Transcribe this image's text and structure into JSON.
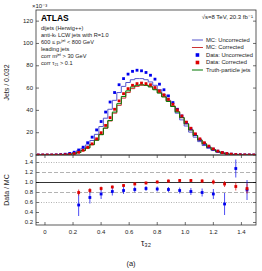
{
  "chart_data": [
    {
      "type": "histogram",
      "ylabel": "Jets / 0.032",
      "annotations": [
        "×10⁻³",
        "ATLAS",
        "√s=8 TeV,  20.3 fb⁻¹"
      ],
      "subtitle": [
        "dijets (Herwig++)",
        "anti-kₜ LCW jets with R=1.0",
        "600 ≤ pₜʲᵉᵗ < 800 GeV",
        "leading jets",
        "corr mʲᵉᵗ > 30 GeV",
        "corr τ₂₁ > 0.1"
      ],
      "xlim": [
        -0.064,
        1.504
      ],
      "ylim": [
        0,
        130
      ],
      "yticks": [
        0,
        20,
        40,
        60,
        80,
        100,
        120
      ],
      "tick_labels": "y",
      "legend": "upper right",
      "bins": [
        -0.064,
        -0.032,
        0.0,
        0.032,
        0.064,
        0.096,
        0.128,
        0.16,
        0.192,
        0.224,
        0.256,
        0.288,
        0.32,
        0.352,
        0.384,
        0.416,
        0.448,
        0.48,
        0.512,
        0.544,
        0.576,
        0.608,
        0.64,
        0.672,
        0.704,
        0.736,
        0.768,
        0.8,
        0.832,
        0.864,
        0.896,
        0.928,
        0.96,
        0.992,
        1.024,
        1.056,
        1.088,
        1.12,
        1.152,
        1.184,
        1.216,
        1.248,
        1.28,
        1.312,
        1.344,
        1.376,
        1.408,
        1.44,
        1.472,
        1.504
      ],
      "series": [
        {
          "name": "MC: Uncorrected",
          "type": "step",
          "color": "#5555cc",
          "values": [
            0.0,
            0.0,
            0.0,
            0.0,
            0.1,
            0.3,
            0.6,
            1.2,
            2.2,
            3.8,
            6.0,
            9.0,
            13.0,
            18.5,
            25.5,
            33.0,
            41.0,
            49.0,
            56.0,
            61.5,
            65.0,
            67.5,
            68.5,
            68.5,
            67.5,
            65.5,
            62.5,
            58.5,
            54.0,
            49.0,
            43.5,
            37.5,
            31.5,
            26.0,
            20.5,
            16.0,
            12.0,
            8.5,
            6.0,
            4.0,
            2.5,
            1.5,
            0.9,
            0.4,
            0.2,
            0.1,
            0.05,
            0.02,
            0.0
          ]
        },
        {
          "name": "MC: Corrected",
          "type": "step",
          "color": "#cc3333",
          "values": [
            0.0,
            0.0,
            0.0,
            0.0,
            0.0,
            0.1,
            0.3,
            0.6,
            1.2,
            2.3,
            4.0,
            6.5,
            9.5,
            13.5,
            18.5,
            24.0,
            30.5,
            37.5,
            44.5,
            51.0,
            56.0,
            59.5,
            61.5,
            62.5,
            62.5,
            61.5,
            59.0,
            56.0,
            52.5,
            48.5,
            44.0,
            39.0,
            33.5,
            28.0,
            22.5,
            17.5,
            13.5,
            10.0,
            7.0,
            4.8,
            3.2,
            2.0,
            1.2,
            0.7,
            0.35,
            0.15,
            0.07,
            0.02,
            0.0
          ]
        },
        {
          "name": "Data: Uncorrected",
          "type": "scatter",
          "marker": "square",
          "color": "#0000ee",
          "values": [
            0.0,
            0.0,
            0.0,
            0.0,
            0.12,
            0.35,
            0.7,
            1.4,
            2.5,
            4.5,
            7.0,
            11.0,
            16.0,
            22.5,
            30.0,
            38.5,
            47.5,
            56.0,
            63.0,
            68.5,
            72.5,
            75.0,
            76.0,
            75.5,
            74.0,
            71.5,
            68.0,
            63.5,
            58.5,
            53.0,
            47.0,
            41.0,
            35.0,
            29.0,
            23.5,
            18.5,
            14.0,
            10.5,
            7.5,
            5.2,
            3.4,
            2.2,
            1.3,
            0.75,
            0.4,
            0.2,
            0.09,
            0.04,
            0.0
          ],
          "errors": [
            0.003795,
            0.003795,
            0.003795,
            0.003795,
            0.004157,
            0.007099,
            0.01004,
            0.014199,
            0.018974,
            0.025456,
            0.031749,
            0.039799,
            0.048,
            0.056921,
            0.065727,
            0.074458,
            0.082704,
            0.0898,
            0.095247,
            0.099318,
            0.102176,
            0.103923,
            0.104614,
            0.104269,
            0.103228,
            0.101469,
            0.098954,
            0.095624,
            0.091782,
            0.087361,
            0.082268,
            0.076838,
            0.070993,
            0.064622,
            0.058172,
            0.051614,
            0.0449,
            0.038884,
            0.032863,
            0.027364,
            0.022127,
            0.017799,
            0.013682,
            0.010392,
            0.007589,
            0.005367,
            0.003795,
            0.003795,
            0.003795
          ]
        },
        {
          "name": "Data: Corrected",
          "type": "scatter",
          "marker": "square",
          "color": "#dd0000",
          "values": [
            0.0,
            0.0,
            0.0,
            0.0,
            0.0,
            0.12,
            0.28,
            0.6,
            1.2,
            2.4,
            4.2,
            6.8,
            10.0,
            14.5,
            20.0,
            26.5,
            33.5,
            41.0,
            48.5,
            55.0,
            59.5,
            62.5,
            64.0,
            64.5,
            64.0,
            63.0,
            60.5,
            57.5,
            54.0,
            50.0,
            45.5,
            40.5,
            35.0,
            29.5,
            24.0,
            19.0,
            14.5,
            11.0,
            8.0,
            5.5,
            3.5,
            2.2,
            1.3,
            0.75,
            0.38,
            0.18,
            0.08,
            0.03,
            0.0
          ],
          "errors": [
            0.003795,
            0.003795,
            0.003795,
            0.003795,
            0.003795,
            0.004157,
            0.00635,
            0.009295,
            0.013145,
            0.01859,
            0.024593,
            0.031292,
            0.037947,
            0.045695,
            0.053666,
            0.061774,
            0.069455,
            0.076838,
            0.08357,
            0.088994,
            0.092563,
            0.094868,
            0.096,
            0.096374,
            0.096,
            0.095247,
            0.093338,
            0.090995,
            0.088182,
            0.084853,
            0.080944,
            0.076368,
            0.070993,
            0.065177,
            0.058788,
            0.052307,
            0.045695,
            0.039799,
            0.033941,
            0.028142,
            0.02245,
            0.017799,
            0.013682,
            0.010392,
            0.007397,
            0.005091,
            0.003795,
            0.003795,
            0.003795
          ]
        },
        {
          "name": "Truth-particle jets",
          "type": "step",
          "color": "#007700",
          "values": [
            0.0,
            0.0,
            0.0,
            0.0,
            0.0,
            0.1,
            0.25,
            0.55,
            1.1,
            2.2,
            4.0,
            6.2,
            9.2,
            13.2,
            18.2,
            24.2,
            31.0,
            38.5,
            46.0,
            52.5,
            57.5,
            61.0,
            62.5,
            63.0,
            62.5,
            61.0,
            58.5,
            55.5,
            52.0,
            48.0,
            43.5,
            38.5,
            33.5,
            28.0,
            22.5,
            17.5,
            13.5,
            10.0,
            7.0,
            4.8,
            3.0,
            1.8,
            1.0,
            0.55,
            0.28,
            0.12,
            0.05,
            0.02,
            0.0
          ]
        }
      ]
    },
    {
      "type": "scatter",
      "xlabel": "τ₃₂",
      "ylabel": "Data / MC",
      "annotations": [
        "(a)"
      ],
      "xlim": [
        -0.064,
        1.504
      ],
      "ylim": [
        0.15,
        1.55
      ],
      "xticks": [
        0,
        0.2,
        0.4,
        0.6,
        0.8,
        {
          "value": 1.0,
          "label": "1.0"
        },
        1.2,
        1.4
      ],
      "yticks": [
        0.2,
        0.4,
        0.6,
        0.8,
        {
          "value": 1.0,
          "label": "1.0"
        },
        1.2,
        1.4
      ],
      "reference_lines": [
        {
          "value": 1.0,
          "color": "black",
          "line_style": "solid"
        },
        {
          "value": 0.8,
          "color": "gray",
          "line_style": "dashed"
        },
        {
          "value": 1.2,
          "color": "gray",
          "line_style": "dashed"
        },
        {
          "value": 0.6,
          "color": "gray",
          "line_style": "dotted"
        },
        {
          "value": 1.4,
          "color": "gray",
          "line_style": "dotted"
        }
      ],
      "series": [
        {
          "color": "#0000ee",
          "marker": "square",
          "x": [
            0.24,
            0.32,
            0.4,
            0.48,
            0.56,
            0.64,
            0.72,
            0.8,
            0.88,
            0.96,
            1.04,
            1.12,
            1.2,
            1.28,
            1.36,
            1.44
          ],
          "values": [
            0.55,
            0.7,
            0.77,
            0.82,
            0.84,
            0.86,
            0.88,
            0.87,
            0.86,
            0.84,
            0.82,
            0.8,
            0.77,
            0.57,
            1.28,
            0.85
          ],
          "errors": [
            0.22,
            0.12,
            0.1,
            0.08,
            0.07,
            0.06,
            0.05,
            0.05,
            0.05,
            0.06,
            0.07,
            0.08,
            0.1,
            0.22,
            0.18,
            0.2
          ]
        },
        {
          "color": "#dd0000",
          "marker": "square",
          "x": [
            0.24,
            0.32,
            0.4,
            0.48,
            0.56,
            0.64,
            0.72,
            0.8,
            0.88,
            0.96,
            1.04,
            1.12,
            1.2,
            1.28,
            1.36,
            1.44
          ],
          "values": [
            0.8,
            0.84,
            0.88,
            0.91,
            0.94,
            0.97,
            0.99,
            1.01,
            1.03,
            1.04,
            1.04,
            1.03,
            1.01,
            0.97,
            0.92,
            0.88
          ],
          "errors": [
            0.06,
            0.05,
            0.04,
            0.03,
            0.03,
            0.03,
            0.03,
            0.03,
            0.03,
            0.03,
            0.03,
            0.04,
            0.05,
            0.06,
            0.08,
            0.1
          ]
        }
      ]
    }
  ]
}
